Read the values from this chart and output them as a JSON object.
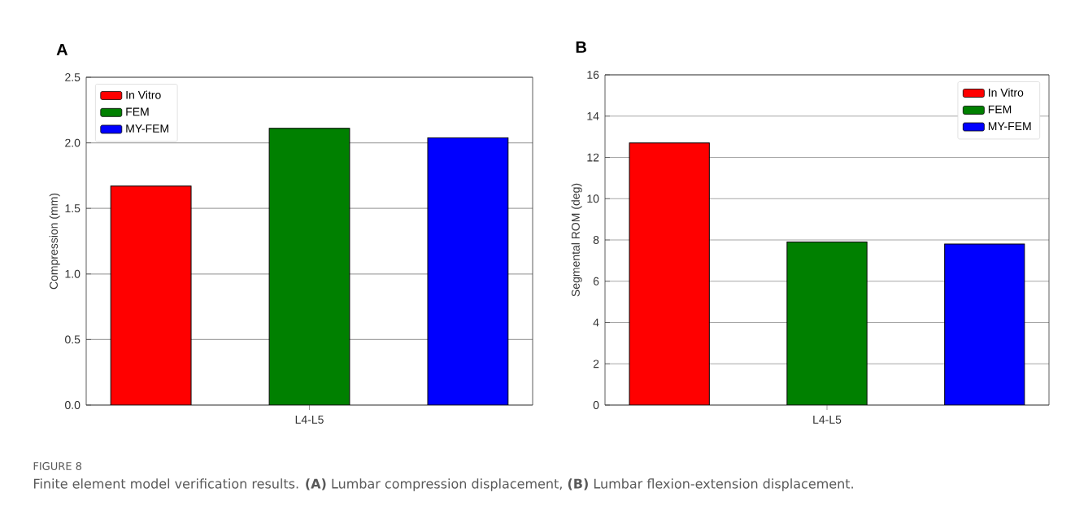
{
  "chart_data": [
    {
      "type": "bar",
      "title": "A",
      "categories": [
        "L4-L5"
      ],
      "ylabel": "Compression (mm)",
      "ylim": [
        0,
        2.5
      ],
      "yticks": [
        {
          "value": 0,
          "label": "0.0"
        },
        0.5,
        {
          "value": 1,
          "label": "1.0"
        },
        1.5,
        {
          "value": 2,
          "label": "2.0"
        },
        2.5
      ],
      "grid": "y",
      "legend": "top left",
      "series": [
        {
          "name": "In Vitro",
          "color": "#ff0000",
          "values": [
            1.67
          ]
        },
        {
          "name": "FEM",
          "color": "#008000",
          "values": [
            2.11
          ]
        },
        {
          "name": "MY-FEM",
          "color": "#0000ff",
          "values": [
            2.04
          ]
        }
      ],
      "annotations": [
        "FIGURE 8",
        "Finite element model verification results. **(A)** Lumbar compression displacement, **(B)** Lumbar flexion-extension displacement."
      ]
    },
    {
      "type": "bar",
      "title": "B",
      "categories": [
        "L4-L5"
      ],
      "ylabel": "Segmental ROM (deg)",
      "ylim": [
        0,
        16
      ],
      "yticks": [
        0,
        2,
        4,
        6,
        8,
        10,
        12,
        14,
        16
      ],
      "grid": "y",
      "legend": "top right",
      "series": [
        {
          "name": "In Vitro",
          "color": "#ff0000",
          "values": [
            12.7
          ]
        },
        {
          "name": "FEM",
          "color": "#008000",
          "values": [
            7.9
          ]
        },
        {
          "name": "MY-FEM",
          "color": "#0000ff",
          "values": [
            7.8
          ]
        }
      ]
    }
  ]
}
